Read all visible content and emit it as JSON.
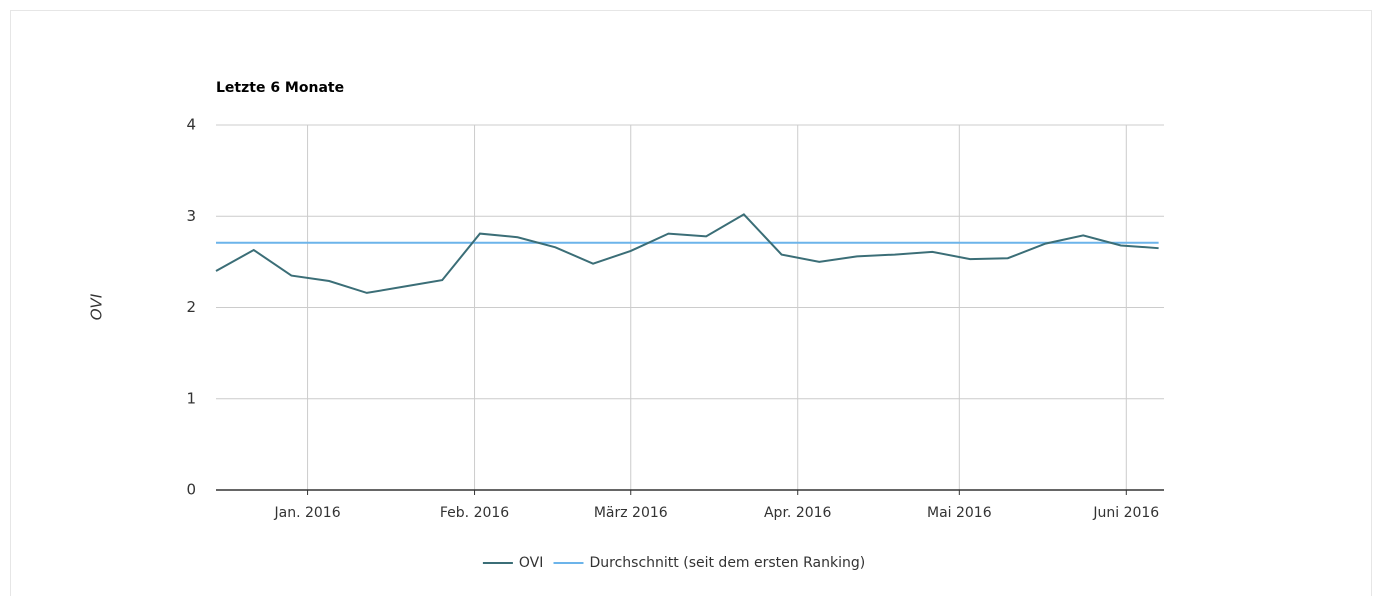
{
  "chart_data": {
    "type": "line",
    "title": "Letzte 6 Monate",
    "y_label": "OVI",
    "x": [
      -17,
      -10,
      -3,
      4,
      11,
      18,
      25,
      32,
      39,
      46,
      53,
      60,
      67,
      74,
      81,
      88,
      95,
      102,
      109,
      116,
      123,
      130,
      137,
      144,
      151,
      158
    ],
    "series": [
      {
        "name": "OVI",
        "color": "#3b6e77",
        "values": [
          2.4,
          2.63,
          2.35,
          2.29,
          2.16,
          2.23,
          2.3,
          2.81,
          2.77,
          2.66,
          2.48,
          2.62,
          2.81,
          2.78,
          3.02,
          2.58,
          2.5,
          2.56,
          2.58,
          2.61,
          2.53,
          2.54,
          2.7,
          2.79,
          2.68,
          2.65
        ]
      },
      {
        "name": "Durchschnitt (seit dem ersten Ranking)",
        "color": "#6cb4ea",
        "values": [
          2.71,
          2.71,
          2.71,
          2.71,
          2.71,
          2.71,
          2.71,
          2.71,
          2.71,
          2.71,
          2.71,
          2.71,
          2.71,
          2.71,
          2.71,
          2.71,
          2.71,
          2.71,
          2.71,
          2.71,
          2.71,
          2.71,
          2.71,
          2.71,
          2.71,
          2.71
        ]
      }
    ],
    "xlim": [
      -17,
      159
    ],
    "xticks": [
      {
        "value": 0,
        "label": "Jan. 2016"
      },
      {
        "value": 31,
        "label": "Feb. 2016"
      },
      {
        "value": 60,
        "label": "März 2016"
      },
      {
        "value": 91,
        "label": "Apr. 2016"
      },
      {
        "value": 121,
        "label": "Mai 2016"
      },
      {
        "value": 152,
        "label": "Juni 2016"
      }
    ],
    "ylim": [
      0,
      4
    ],
    "yticks": [
      0,
      1,
      2,
      3,
      4
    ],
    "grid": true,
    "legend": "bottom"
  }
}
